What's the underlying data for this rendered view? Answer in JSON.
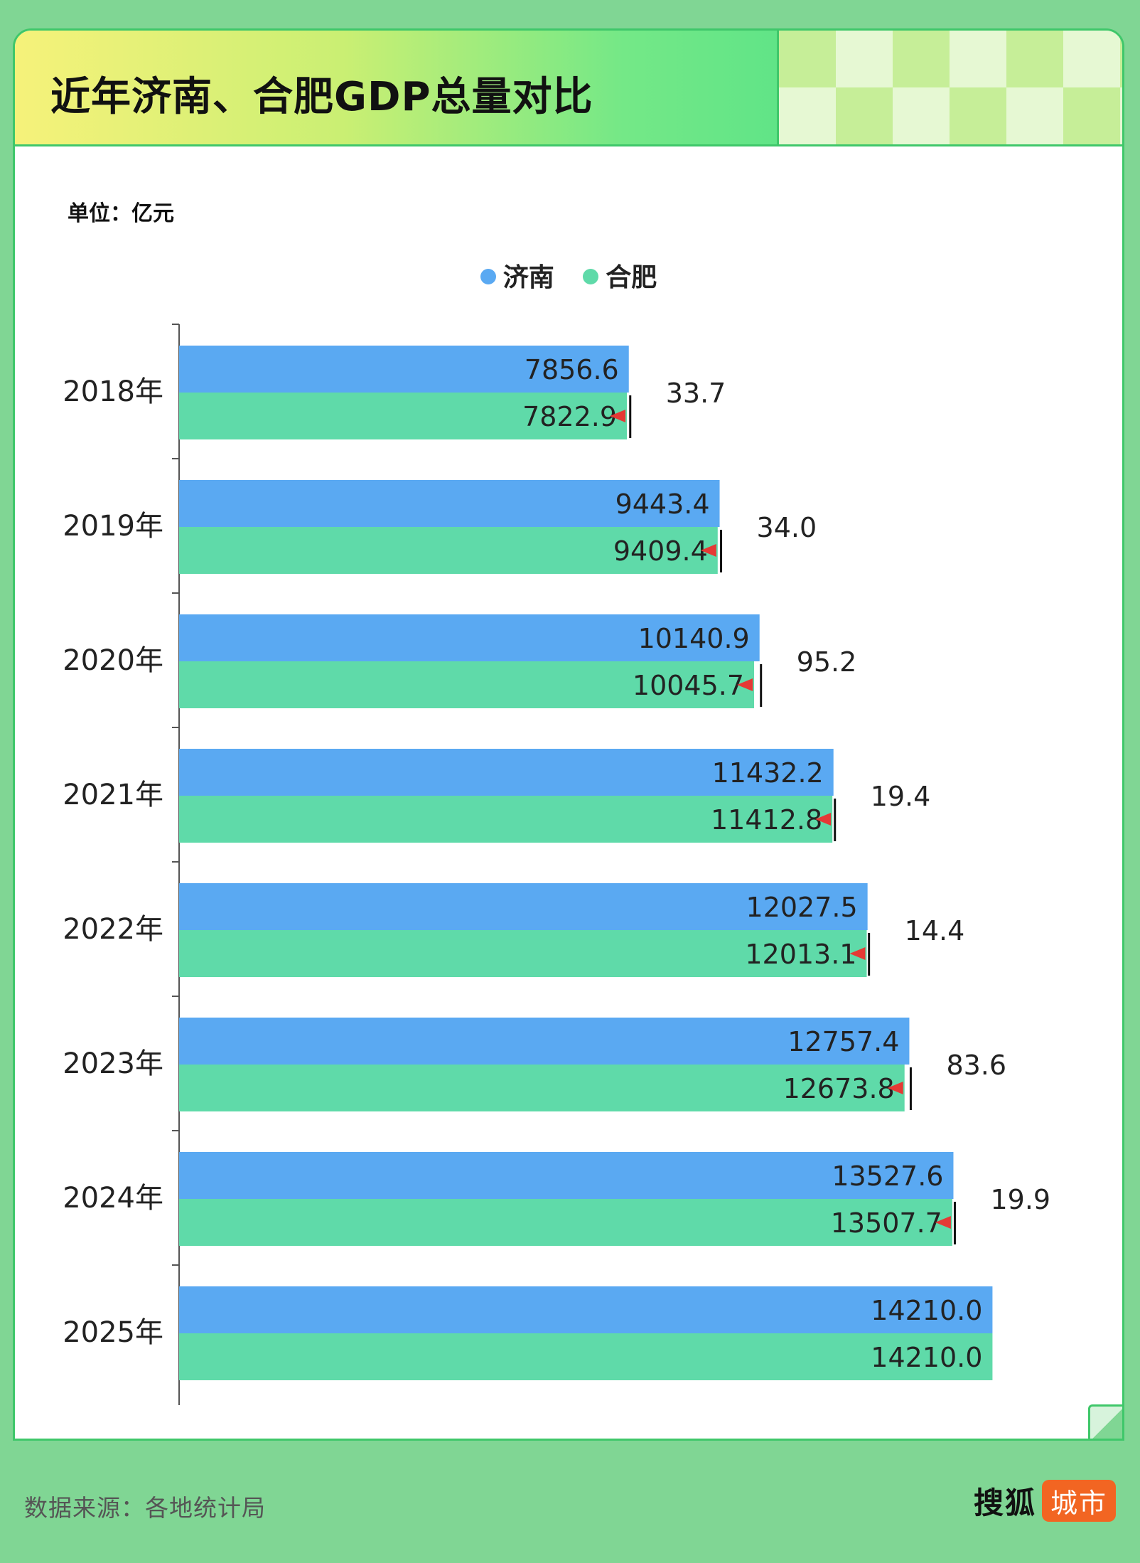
{
  "title": "近年济南、合肥GDP总量对比",
  "unit": "单位：亿元",
  "legend": [
    {
      "name": "济南",
      "color": "#5aa9f2"
    },
    {
      "name": "合肥",
      "color": "#5fdaa9"
    }
  ],
  "colors": {
    "arrow": "#e53935",
    "marker": "#111111",
    "axis": "#555555"
  },
  "footer": {
    "source": "数据来源：各地统计局",
    "brand": "搜狐",
    "brand_tag": "城市"
  },
  "chart_data": {
    "type": "bar",
    "orientation": "horizontal",
    "title": "近年济南、合肥GDP总量对比",
    "xlabel": "",
    "ylabel": "",
    "unit": "亿元",
    "xlim": [
      0,
      14900
    ],
    "categories": [
      "2018年",
      "2019年",
      "2020年",
      "2021年",
      "2022年",
      "2023年",
      "2024年",
      "2025年"
    ],
    "series": [
      {
        "name": "济南",
        "values": [
          7856.6,
          9443.4,
          10140.9,
          11432.2,
          12027.5,
          12757.4,
          13527.6,
          14210.0
        ],
        "labels": [
          "7856.6",
          "9443.4",
          "10140.9",
          "11432.2",
          "12027.5",
          "12757.4",
          "13527.6",
          "14210.0"
        ]
      },
      {
        "name": "合肥",
        "values": [
          7822.9,
          9409.4,
          10045.7,
          11412.8,
          12013.1,
          12673.8,
          13507.7,
          14210.0
        ],
        "labels": [
          "7822.9",
          "9409.4",
          "10045.7",
          "11412.8",
          "12013.1",
          "12673.8",
          "13507.7",
          "14210.0"
        ]
      }
    ],
    "differences": [
      "33.7",
      "34.0",
      "95.2",
      "19.4",
      "14.4",
      "83.6",
      "19.9",
      ""
    ],
    "legend_position": "top-center",
    "grid": false
  }
}
